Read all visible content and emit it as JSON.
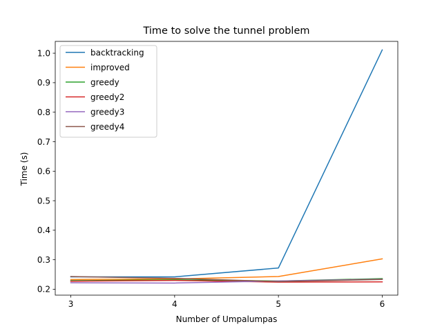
{
  "chart_data": {
    "type": "line",
    "title": "Time to solve the tunnel problem",
    "xlabel": "Number of Umpalumpas",
    "ylabel": "Time (s)",
    "x": [
      3,
      4,
      5,
      6
    ],
    "xticks": [
      "3",
      "4",
      "5",
      "6"
    ],
    "yticks": [
      "0.2",
      "0.3",
      "0.4",
      "0.5",
      "0.6",
      "0.7",
      "0.8",
      "0.9",
      "1.0"
    ],
    "xlim": [
      2.85,
      6.15
    ],
    "ylim": [
      0.18,
      1.04
    ],
    "grid": false,
    "legend_position": "top-left",
    "series": [
      {
        "name": "backtracking",
        "color": "#1f77b4",
        "values": [
          0.242,
          0.242,
          0.272,
          1.011
        ]
      },
      {
        "name": "improved",
        "color": "#ff7f0e",
        "values": [
          0.233,
          0.235,
          0.243,
          0.303
        ]
      },
      {
        "name": "greedy",
        "color": "#2ca02c",
        "values": [
          0.229,
          0.232,
          0.228,
          0.236
        ]
      },
      {
        "name": "greedy2",
        "color": "#d62728",
        "values": [
          0.227,
          0.23,
          0.224,
          0.225
        ]
      },
      {
        "name": "greedy3",
        "color": "#9467bd",
        "values": [
          0.222,
          0.221,
          0.228,
          0.234
        ]
      },
      {
        "name": "greedy4",
        "color": "#8c564b",
        "values": [
          0.243,
          0.237,
          0.226,
          0.233
        ]
      }
    ]
  }
}
